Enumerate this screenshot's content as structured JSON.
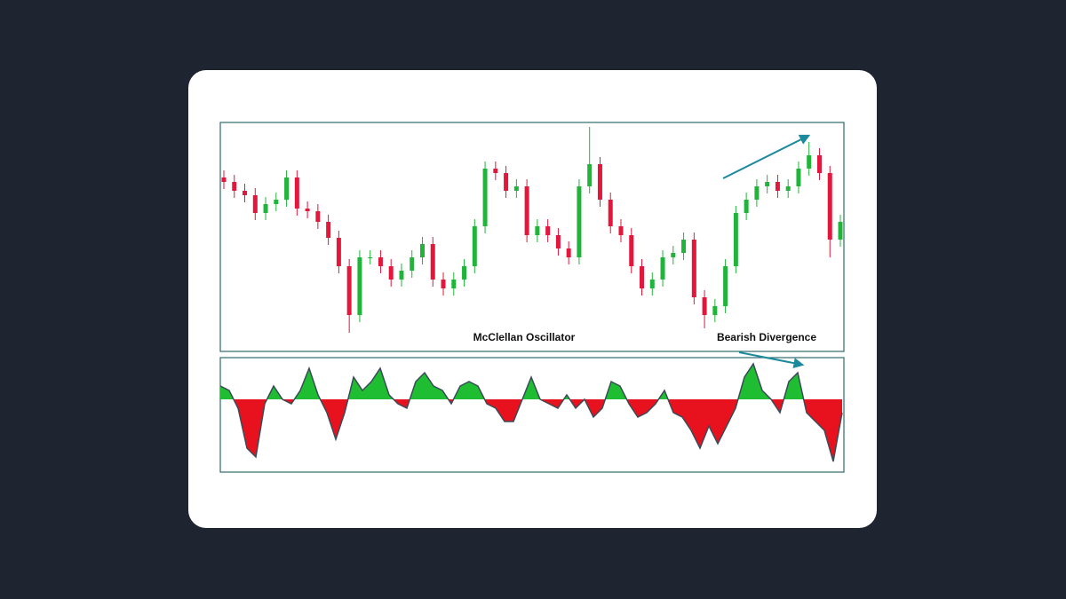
{
  "chart_data": [
    {
      "type": "candlestick",
      "annotation": "Bearish Divergence",
      "open": [
        196,
        191,
        181,
        176,
        156,
        166,
        171,
        196,
        161,
        158,
        146,
        128,
        96,
        41,
        106,
        106,
        96,
        81,
        91,
        106,
        121,
        81,
        71,
        81,
        96,
        141,
        206,
        201,
        181,
        186,
        131,
        141,
        131,
        116,
        106,
        186,
        211,
        171,
        141,
        131,
        96,
        71,
        81,
        106,
        111,
        126,
        61,
        41,
        51,
        96,
        156,
        171,
        186,
        191,
        181,
        186,
        206,
        221,
        201,
        126
      ],
      "high": [
        204,
        199,
        189,
        184,
        174,
        179,
        204,
        204,
        169,
        166,
        154,
        136,
        104,
        114,
        114,
        114,
        104,
        99,
        114,
        129,
        129,
        89,
        89,
        104,
        149,
        214,
        214,
        209,
        194,
        194,
        149,
        149,
        139,
        124,
        194,
        253,
        219,
        179,
        149,
        139,
        104,
        89,
        114,
        119,
        134,
        134,
        69,
        59,
        104,
        164,
        179,
        194,
        199,
        199,
        194,
        214,
        236,
        229,
        209,
        154
      ],
      "low": [
        183,
        173,
        168,
        148,
        148,
        158,
        163,
        153,
        150,
        138,
        120,
        88,
        21,
        33,
        98,
        88,
        73,
        73,
        83,
        98,
        73,
        63,
        63,
        73,
        88,
        133,
        193,
        173,
        173,
        123,
        123,
        123,
        108,
        98,
        98,
        178,
        163,
        133,
        123,
        88,
        63,
        63,
        73,
        98,
        103,
        53,
        26,
        33,
        43,
        88,
        148,
        163,
        178,
        173,
        173,
        178,
        198,
        193,
        106,
        118
      ],
      "close": [
        191,
        181,
        176,
        156,
        166,
        171,
        196,
        161,
        158,
        146,
        128,
        96,
        41,
        106,
        106,
        96,
        81,
        91,
        106,
        121,
        81,
        71,
        81,
        96,
        141,
        206,
        201,
        181,
        186,
        131,
        141,
        131,
        116,
        106,
        186,
        211,
        171,
        141,
        131,
        96,
        71,
        81,
        106,
        111,
        126,
        61,
        41,
        51,
        96,
        156,
        171,
        186,
        191,
        181,
        186,
        206,
        221,
        201,
        126,
        146
      ],
      "ylim": [
        0,
        258
      ],
      "up_color": "#20b43a",
      "down_color": "#e3163c"
    },
    {
      "type": "area",
      "title": "McClellan Oscillator",
      "values": [
        15,
        10,
        -10,
        -55,
        -65,
        -5,
        15,
        0,
        -5,
        10,
        35,
        5,
        -15,
        -45,
        -15,
        25,
        10,
        20,
        35,
        5,
        -5,
        -10,
        20,
        30,
        15,
        10,
        -5,
        15,
        20,
        15,
        -5,
        -10,
        -25,
        -25,
        0,
        25,
        0,
        -5,
        -10,
        5,
        -10,
        0,
        -20,
        -10,
        20,
        15,
        -5,
        -20,
        -15,
        -5,
        10,
        -15,
        -20,
        -35,
        -55,
        -30,
        -50,
        -30,
        -10,
        25,
        40,
        10,
        0,
        -15,
        20,
        30,
        -15,
        -25,
        -35,
        -70,
        -15
      ],
      "ylim": [
        -82,
        47
      ],
      "pos_color": "#1fbe32",
      "neg_color": "#e8121e",
      "line_color": "#3b4a58"
    }
  ]
}
